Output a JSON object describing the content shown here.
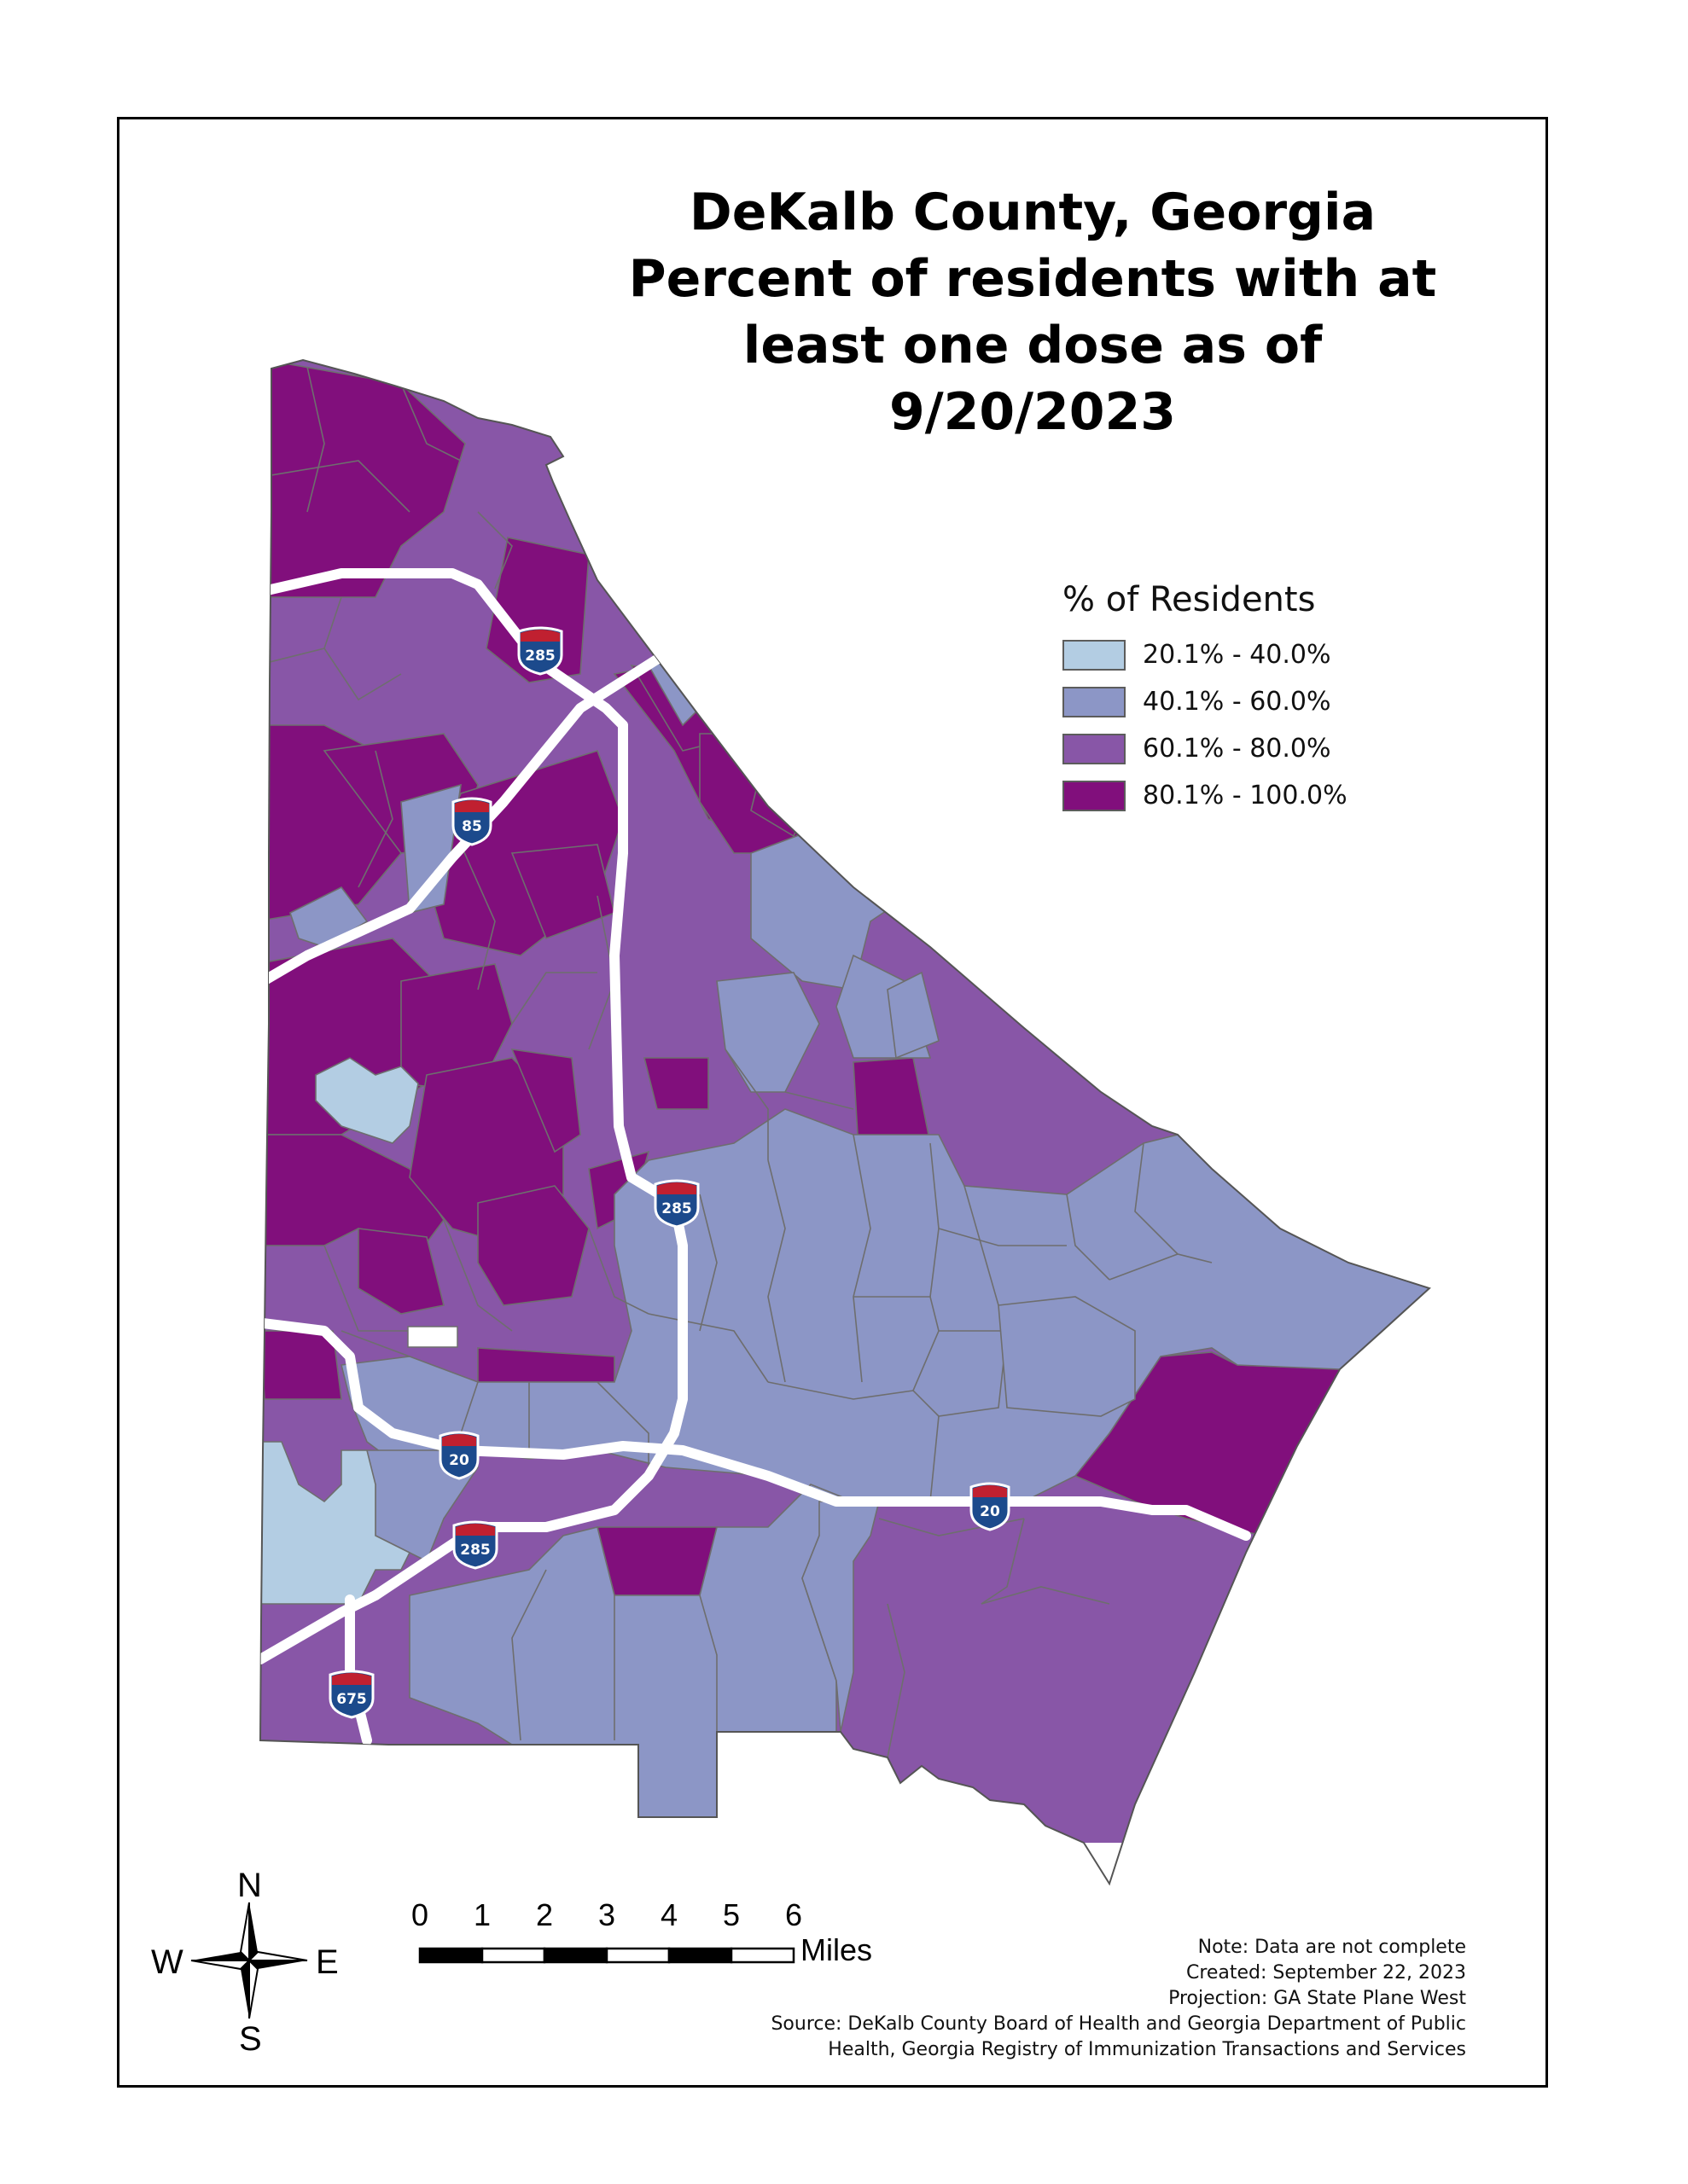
{
  "title": {
    "line1": "DeKalb County, Georgia",
    "line2": "Percent of residents with at",
    "line3": "least one dose as of",
    "line4": "9/20/2023"
  },
  "legend": {
    "title": "% of Residents",
    "items": [
      {
        "label": "20.1% - 40.0%",
        "color": "#b3cde3"
      },
      {
        "label": "40.1% - 60.0%",
        "color": "#8c96c6"
      },
      {
        "label": "60.1% - 80.0%",
        "color": "#8856a7"
      },
      {
        "label": "80.1% - 100.0%",
        "color": "#810f7c"
      }
    ]
  },
  "highways": [
    {
      "number": "285"
    },
    {
      "number": "85"
    },
    {
      "number": "285"
    },
    {
      "number": "20"
    },
    {
      "number": "285"
    },
    {
      "number": "20"
    },
    {
      "number": "675"
    }
  ],
  "scale_bar": {
    "ticks": [
      "0",
      "1",
      "2",
      "3",
      "4",
      "5",
      "6"
    ],
    "units": "Miles"
  },
  "compass": {
    "n": "N",
    "s": "S",
    "e": "E",
    "w": "W"
  },
  "notes": {
    "line1": "Note: Data are not complete",
    "line2": "Created: September 22, 2023",
    "line3": "Projection: GA State Plane West",
    "line4": "Source: DeKalb County Board of Health and Georgia Department of Public",
    "line5": "Health, Georgia Registry of Immunization Transactions and Services"
  },
  "colors": {
    "border": "#000000",
    "district_stroke": "#6e6e6e",
    "highway": "#ffffff",
    "shield_blue": "#1c4a8c",
    "shield_red": "#c02030"
  }
}
